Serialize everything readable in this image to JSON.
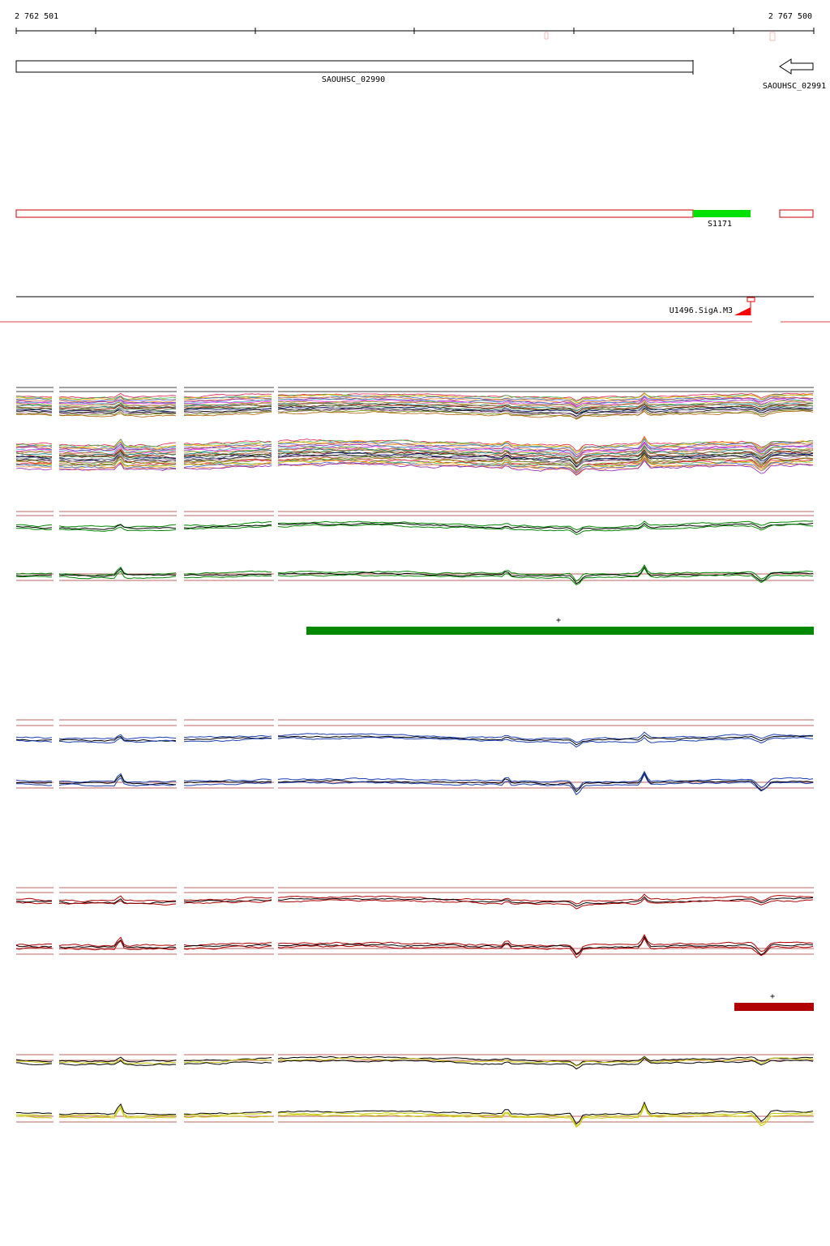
{
  "coordinates": {
    "start_label": "2 762 501",
    "end_label": "2 767 500"
  },
  "genes": [
    {
      "name": "SAOUHSC_02990",
      "strand": "+"
    },
    {
      "name": "SAOUHSC_02991",
      "strand": "-"
    }
  ],
  "segments": {
    "label": "S1171"
  },
  "promoters": {
    "label": "U1496.SigA.M3"
  },
  "markers": [
    "+",
    "+"
  ],
  "colors": {
    "axis": "#000000",
    "segment_outline": "#cc0000",
    "segment_highlight": "#00e000",
    "promoter": "#ff0000",
    "green": "#008800",
    "blue": "#1a3fb0",
    "red": "#b00000",
    "yellow": "#c8c800",
    "bar_green": "#008800",
    "bar_red": "#b00000"
  }
}
